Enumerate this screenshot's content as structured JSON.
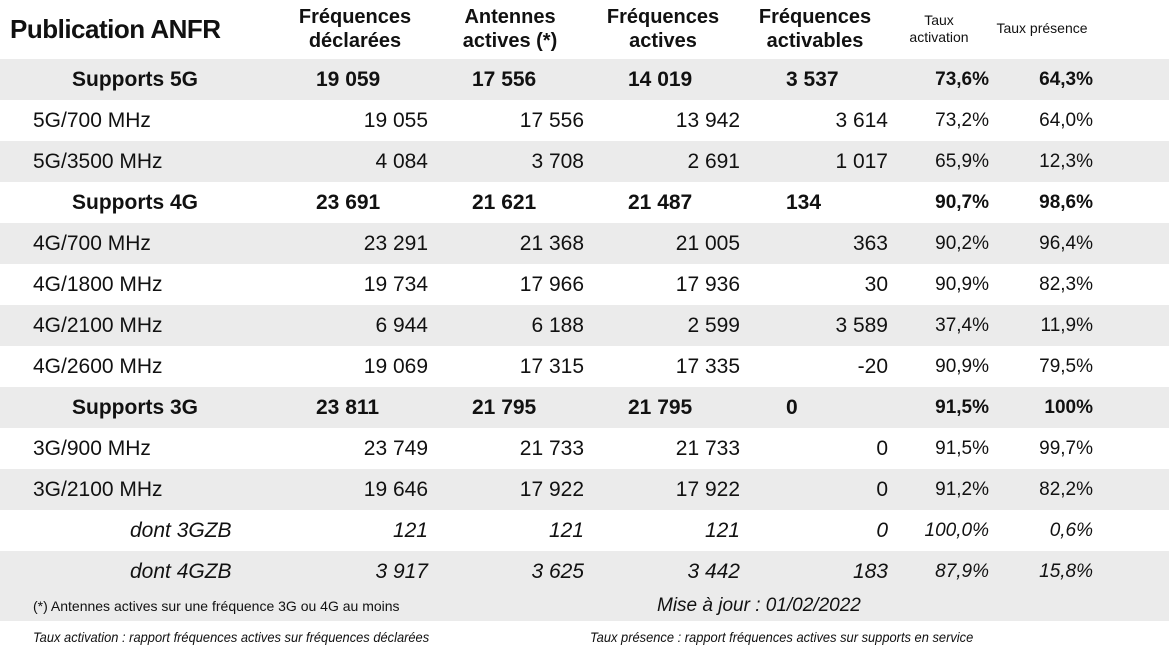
{
  "header": {
    "title": "Publication ANFR",
    "col1": [
      "Fréquences",
      "déclarées"
    ],
    "col2": [
      "Antennes",
      "actives (*)"
    ],
    "col3": [
      "Fréquences",
      "actives"
    ],
    "col4": [
      "Fréquences",
      "activables"
    ],
    "col5": [
      "Taux",
      "activation"
    ],
    "col6": "Taux présence"
  },
  "rows": [
    {
      "label": "Supports 5G",
      "declarees": "19 059",
      "antennes": "17 556",
      "actives": "14 019",
      "activables": "3 537",
      "taux_activation": "73,6%",
      "taux_presence": "64,3%"
    },
    {
      "label": "5G/700 MHz",
      "declarees": "19 055",
      "antennes": "17 556",
      "actives": "13 942",
      "activables": "3 614",
      "taux_activation": "73,2%",
      "taux_presence": "64,0%"
    },
    {
      "label": "5G/3500 MHz",
      "declarees": "4 084",
      "antennes": "3 708",
      "actives": "2 691",
      "activables": "1 017",
      "taux_activation": "65,9%",
      "taux_presence": "12,3%"
    },
    {
      "label": "Supports 4G",
      "declarees": "23 691",
      "antennes": "21 621",
      "actives": "21 487",
      "activables": "134",
      "taux_activation": "90,7%",
      "taux_presence": "98,6%"
    },
    {
      "label": "4G/700 MHz",
      "declarees": "23 291",
      "antennes": "21 368",
      "actives": "21 005",
      "activables": "363",
      "taux_activation": "90,2%",
      "taux_presence": "96,4%"
    },
    {
      "label": "4G/1800 MHz",
      "declarees": "19 734",
      "antennes": "17 966",
      "actives": "17 936",
      "activables": "30",
      "taux_activation": "90,9%",
      "taux_presence": "82,3%"
    },
    {
      "label": "4G/2100 MHz",
      "declarees": "6 944",
      "antennes": "6 188",
      "actives": "2 599",
      "activables": "3 589",
      "taux_activation": "37,4%",
      "taux_presence": "11,9%"
    },
    {
      "label": "4G/2600 MHz",
      "declarees": "19 069",
      "antennes": "17 315",
      "actives": "17 335",
      "activables": "-20",
      "taux_activation": "90,9%",
      "taux_presence": "79,5%"
    },
    {
      "label": "Supports 3G",
      "declarees": "23 811",
      "antennes": "21 795",
      "actives": "21 795",
      "activables": "0",
      "taux_activation": "91,5%",
      "taux_presence": "100%"
    },
    {
      "label": "3G/900 MHz",
      "declarees": "23 749",
      "antennes": "21 733",
      "actives": "21 733",
      "activables": "0",
      "taux_activation": "91,5%",
      "taux_presence": "99,7%"
    },
    {
      "label": "3G/2100 MHz",
      "declarees": "19 646",
      "antennes": "17 922",
      "actives": "17 922",
      "activables": "0",
      "taux_activation": "91,2%",
      "taux_presence": "82,2%"
    },
    {
      "label": "dont 3GZB",
      "declarees": "121",
      "antennes": "121",
      "actives": "121",
      "activables": "0",
      "taux_activation": "100,0%",
      "taux_presence": "0,6%"
    },
    {
      "label": "dont 4GZB",
      "declarees": "3 917",
      "antennes": "3 625",
      "actives": "3 442",
      "activables": "183",
      "taux_activation": "87,9%",
      "taux_presence": "15,8%"
    }
  ],
  "footer": {
    "note_antennes": "(*) Antennes actives sur une fréquence 3G ou 4G au moins",
    "mise_a_jour": "Mise à jour : 01/02/2022",
    "note_activation": "Taux activation : rapport fréquences actives sur fréquences déclarées",
    "note_presence": "Taux présence : rapport fréquences actives sur supports en service"
  }
}
